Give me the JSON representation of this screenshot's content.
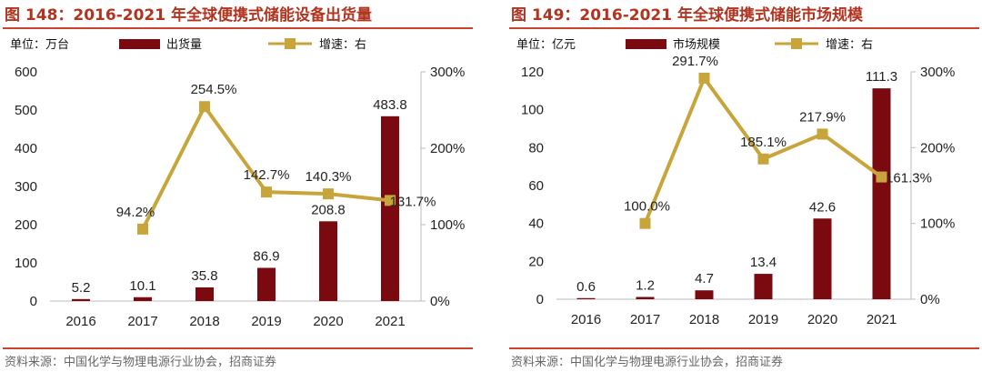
{
  "colors": {
    "bar": "#7b0a10",
    "line": "#c7a53a",
    "title": "#b0341f",
    "rule": "#c9432e"
  },
  "source_text": "资料来源：中国化学与物理电源行业协会，招商证券",
  "chart_data": [
    {
      "type": "bar",
      "title": "图 148：2016-2021 年全球便携式储能设备出货量",
      "unit_label": "单位：万台",
      "legend": {
        "bar": "出货量",
        "line": "增速：右"
      },
      "categories": [
        "2016",
        "2017",
        "2018",
        "2019",
        "2020",
        "2021"
      ],
      "series": [
        {
          "name": "出货量",
          "kind": "bar",
          "values": [
            5.2,
            10.1,
            35.8,
            86.9,
            208.8,
            483.8
          ],
          "labels": [
            "5.2",
            "10.1",
            "35.8",
            "86.9",
            "208.8",
            "483.8"
          ]
        },
        {
          "name": "增速",
          "kind": "line",
          "axis": "right",
          "values": [
            null,
            94.2,
            254.5,
            142.7,
            140.3,
            131.7
          ],
          "labels": [
            "",
            "94.2%",
            "254.5%",
            "142.7%",
            "140.3%",
            "131.7%"
          ]
        }
      ],
      "ylim": [
        0,
        600
      ],
      "yticks": [
        "0",
        "100",
        "200",
        "300",
        "400",
        "500",
        "600"
      ],
      "y2lim": [
        0,
        300
      ],
      "y2ticks": [
        "0%",
        "100%",
        "200%",
        "300%"
      ]
    },
    {
      "type": "bar",
      "title": "图 149：2016-2021 年全球便携式储能市场规模",
      "unit_label": "单位：亿元",
      "legend": {
        "bar": "市场规模",
        "line": "增速：右"
      },
      "categories": [
        "2016",
        "2017",
        "2018",
        "2019",
        "2020",
        "2021"
      ],
      "series": [
        {
          "name": "市场规模",
          "kind": "bar",
          "values": [
            0.6,
            1.2,
            4.7,
            13.4,
            42.6,
            111.3
          ],
          "labels": [
            "0.6",
            "1.2",
            "4.7",
            "13.4",
            "42.6",
            "111.3"
          ]
        },
        {
          "name": "增速",
          "kind": "line",
          "axis": "right",
          "values": [
            null,
            100.0,
            291.7,
            185.1,
            217.9,
            161.3
          ],
          "labels": [
            "",
            "100.0%",
            "291.7%",
            "185.1%",
            "217.9%",
            "161.3%"
          ]
        }
      ],
      "ylim": [
        0,
        120
      ],
      "yticks": [
        "0",
        "20",
        "40",
        "60",
        "80",
        "100",
        "120"
      ],
      "y2lim": [
        0,
        300
      ],
      "y2ticks": [
        "0%",
        "100%",
        "200%",
        "300%"
      ]
    }
  ]
}
